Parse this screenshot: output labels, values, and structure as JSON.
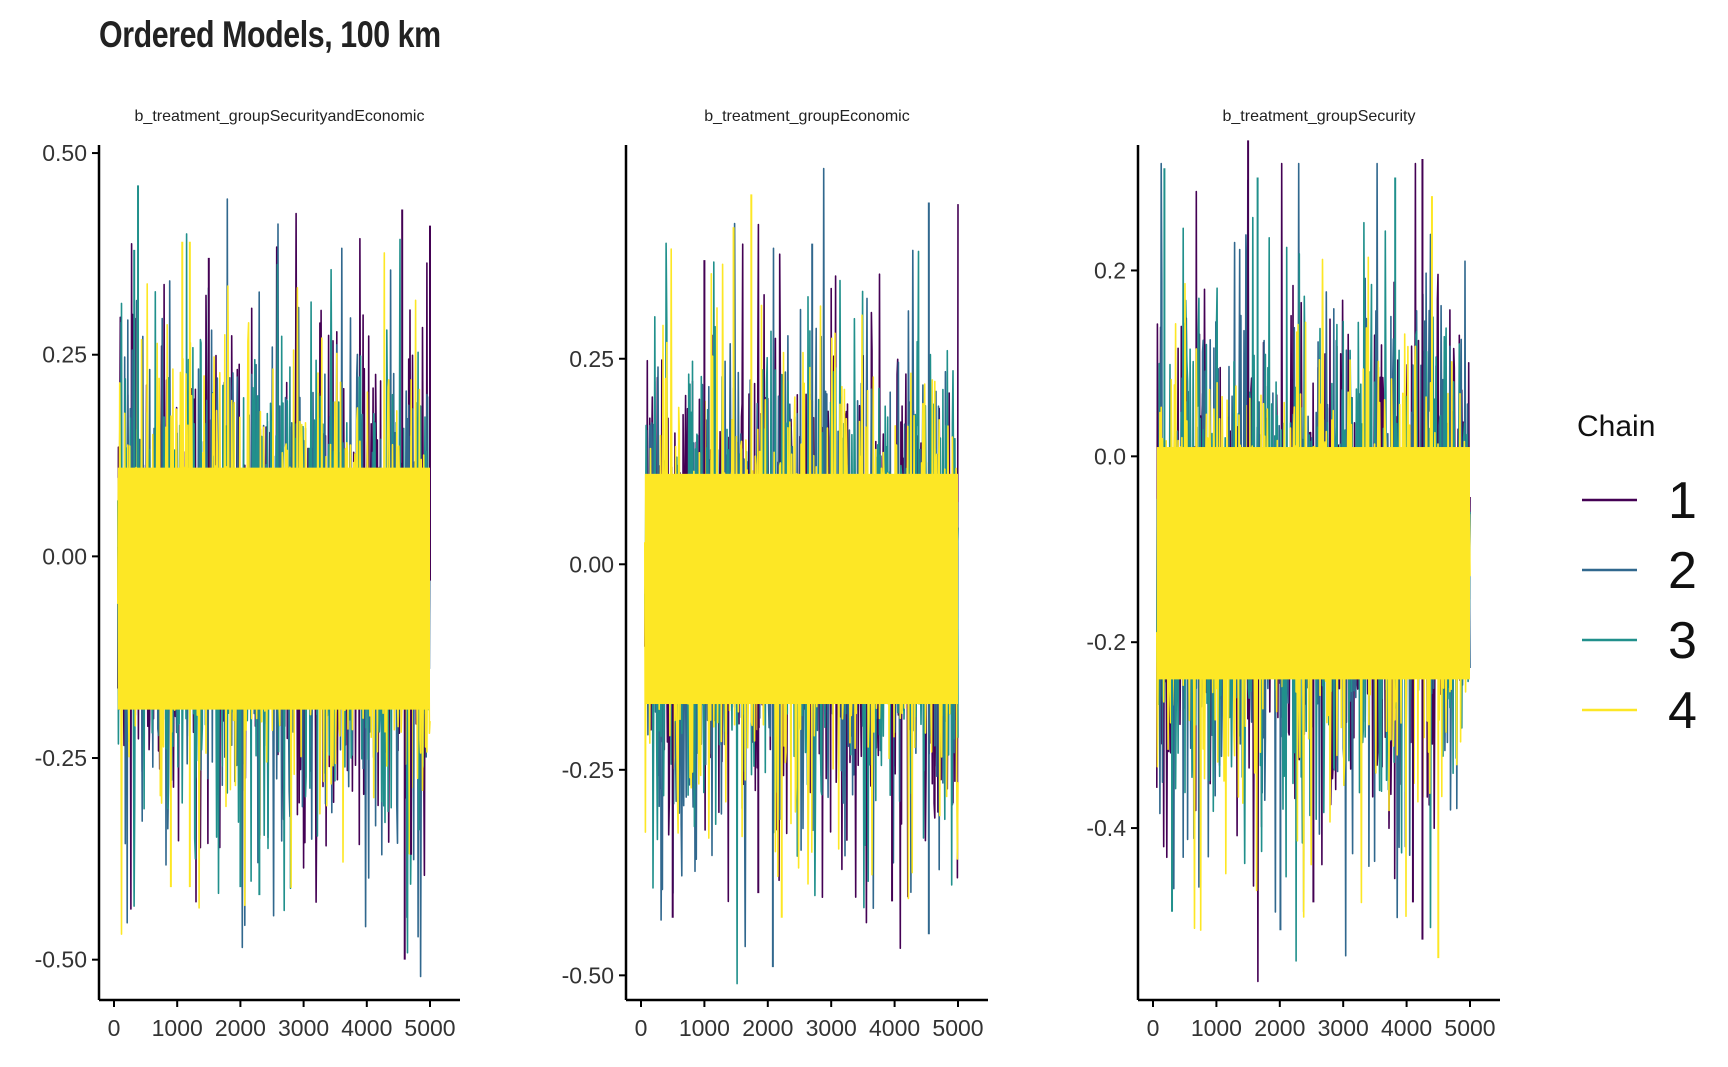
{
  "chart_data": {
    "type": "line",
    "title": "Ordered Models, 100 km",
    "legend": {
      "title": "Chain",
      "position": "right",
      "entries": [
        {
          "label": "1",
          "color": "#440154"
        },
        {
          "label": "2",
          "color": "#31688E"
        },
        {
          "label": "3",
          "color": "#21908C"
        },
        {
          "label": "4",
          "color": "#FDE725"
        }
      ]
    },
    "panels": [
      {
        "name": "b_treatment_groupSecurityandEconomic",
        "xlabel": "",
        "ylabel": "",
        "xlim": [
          -200,
          5200
        ],
        "ylim": [
          -0.55,
          0.51
        ],
        "xticks": [
          0,
          1000,
          2000,
          3000,
          4000,
          5000
        ],
        "xtick_labels": [
          "0",
          "1000",
          "2000",
          "3000",
          "4000",
          "5000"
        ],
        "yticks": [
          -0.5,
          -0.25,
          0,
          0.25,
          0.5
        ],
        "ytick_labels": [
          "-0.50",
          "-0.25",
          "0.00",
          "0.25",
          "0.50"
        ],
        "center": -0.03,
        "band_low": -0.19,
        "band_high": 0.11,
        "typical_low": -0.29,
        "typical_high": 0.27,
        "extremes": [
          {
            "x": 380,
            "y": 0.46,
            "chain": "3"
          },
          {
            "x": 4600,
            "y": -0.5,
            "chain": "1"
          },
          {
            "x": 4560,
            "y": 0.43,
            "chain": "1"
          },
          {
            "x": 5000,
            "y": 0.41,
            "chain": "1"
          },
          {
            "x": 1200,
            "y": 0.39,
            "chain": "4"
          },
          {
            "x": 1080,
            "y": 0.39,
            "chain": "4"
          },
          {
            "x": 900,
            "y": -0.41,
            "chain": "4"
          },
          {
            "x": 2000,
            "y": -0.41,
            "chain": "3"
          },
          {
            "x": 2300,
            "y": -0.42,
            "chain": "3"
          },
          {
            "x": 1200,
            "y": -0.41,
            "chain": "4"
          },
          {
            "x": 1500,
            "y": 0.37,
            "chain": "1"
          },
          {
            "x": 320,
            "y": 0.38,
            "chain": "3"
          },
          {
            "x": 4700,
            "y": -0.37,
            "chain": "1"
          }
        ]
      },
      {
        "name": "b_treatment_groupEconomic",
        "xlabel": "",
        "ylabel": "",
        "xlim": [
          -200,
          5200
        ],
        "ylim": [
          -0.53,
          0.51
        ],
        "xticks": [
          0,
          1000,
          2000,
          3000,
          4000,
          5000
        ],
        "xtick_labels": [
          "0",
          "1000",
          "2000",
          "3000",
          "4000",
          "5000"
        ],
        "yticks": [
          -0.5,
          -0.25,
          0,
          0.25
        ],
        "ytick_labels": [
          "-0.50",
          "-0.25",
          "0.00",
          "0.25"
        ],
        "center": -0.03,
        "band_low": -0.17,
        "band_high": 0.11,
        "typical_low": -0.28,
        "typical_high": 0.27,
        "extremes": [
          {
            "x": 1740,
            "y": 0.45,
            "chain": "4"
          },
          {
            "x": 4540,
            "y": 0.44,
            "chain": "2"
          },
          {
            "x": 2080,
            "y": -0.49,
            "chain": "2"
          },
          {
            "x": 4540,
            "y": -0.45,
            "chain": "2"
          },
          {
            "x": 1460,
            "y": 0.41,
            "chain": "4"
          },
          {
            "x": 2220,
            "y": -0.43,
            "chain": "4"
          },
          {
            "x": 500,
            "y": -0.43,
            "chain": "1"
          },
          {
            "x": 2700,
            "y": 0.39,
            "chain": "2"
          },
          {
            "x": 1000,
            "y": 0.37,
            "chain": "1"
          },
          {
            "x": 3960,
            "y": -0.41,
            "chain": "1"
          },
          {
            "x": 1850,
            "y": -0.4,
            "chain": "1"
          }
        ]
      },
      {
        "name": "b_treatment_groupSecurity",
        "xlabel": "",
        "ylabel": "",
        "xlim": [
          -200,
          5200
        ],
        "ylim": [
          -0.585,
          0.335
        ],
        "xticks": [
          0,
          1000,
          2000,
          3000,
          4000,
          5000
        ],
        "xtick_labels": [
          "0",
          "1000",
          "2000",
          "3000",
          "4000",
          "5000"
        ],
        "yticks": [
          -0.4,
          -0.2,
          0,
          0.2
        ],
        "ytick_labels": [
          "-0.4",
          "-0.2",
          "0.0",
          "0.2"
        ],
        "center": -0.11,
        "band_low": -0.24,
        "band_high": 0.01,
        "typical_low": -0.36,
        "typical_high": 0.15,
        "extremes": [
          {
            "x": 1500,
            "y": 0.34,
            "chain": "1"
          },
          {
            "x": 4500,
            "y": -0.54,
            "chain": "4"
          },
          {
            "x": 4250,
            "y": -0.52,
            "chain": "1"
          },
          {
            "x": 2010,
            "y": -0.51,
            "chain": "2"
          },
          {
            "x": 180,
            "y": 0.31,
            "chain": "3"
          },
          {
            "x": 4250,
            "y": 0.32,
            "chain": "1"
          },
          {
            "x": 300,
            "y": -0.49,
            "chain": "3"
          },
          {
            "x": 4400,
            "y": 0.28,
            "chain": "4"
          },
          {
            "x": 3820,
            "y": 0.3,
            "chain": "3"
          },
          {
            "x": 2530,
            "y": -0.48,
            "chain": "1"
          },
          {
            "x": 4100,
            "y": -0.48,
            "chain": "1"
          },
          {
            "x": 1650,
            "y": 0.3,
            "chain": "3"
          }
        ]
      }
    ]
  }
}
